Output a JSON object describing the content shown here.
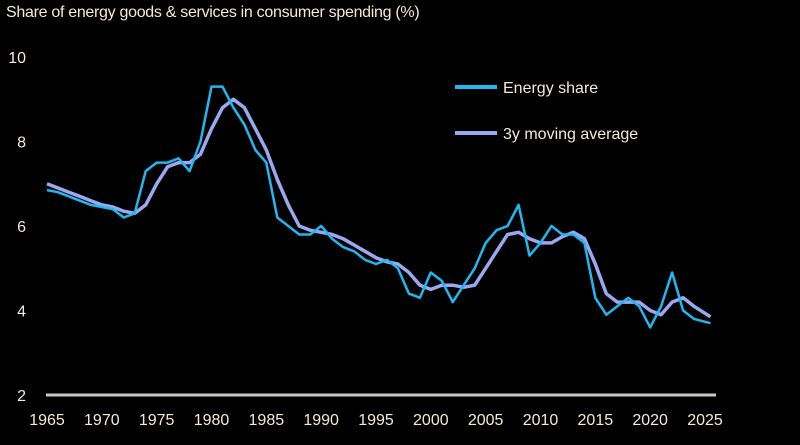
{
  "chart_data": {
    "type": "line",
    "title": "Share of energy goods & services in consumer spending (%)",
    "xlabel": "",
    "ylabel": "",
    "xlim": [
      1965,
      2026
    ],
    "ylim": [
      2,
      10
    ],
    "xticks": [
      "1965",
      "1970",
      "1975",
      "1980",
      "1985",
      "1990",
      "1995",
      "2000",
      "2005",
      "2010",
      "2015",
      "2020",
      "2025"
    ],
    "yticks": [
      "2",
      "4",
      "6",
      "8",
      "10"
    ],
    "grid": false,
    "legend": "top-right",
    "x": [
      1965,
      1966,
      1967,
      1968,
      1969,
      1970,
      1971,
      1972,
      1973,
      1974,
      1975,
      1976,
      1977,
      1978,
      1979,
      1980,
      1981,
      1982,
      1983,
      1984,
      1985,
      1986,
      1987,
      1988,
      1989,
      1990,
      1991,
      1992,
      1993,
      1994,
      1995,
      1996,
      1997,
      1998,
      1999,
      2000,
      2001,
      2002,
      2003,
      2004,
      2005,
      2006,
      2007,
      2008,
      2009,
      2010,
      2011,
      2012,
      2013,
      2014,
      2015,
      2016,
      2017,
      2018,
      2019,
      2020,
      2021,
      2022,
      2023,
      2024,
      2025.5
    ],
    "series": [
      {
        "name": "Energy share",
        "color": "#1fb8f0",
        "values": [
          6.85,
          6.8,
          6.7,
          6.6,
          6.5,
          6.45,
          6.4,
          6.2,
          6.3,
          7.3,
          7.5,
          7.5,
          7.6,
          7.3,
          8.0,
          9.3,
          9.3,
          8.8,
          8.4,
          7.8,
          7.5,
          6.2,
          6.0,
          5.8,
          5.8,
          6.0,
          5.7,
          5.5,
          5.4,
          5.2,
          5.1,
          5.2,
          5.0,
          4.4,
          4.3,
          4.9,
          4.7,
          4.2,
          4.6,
          5.0,
          5.6,
          5.9,
          6.0,
          6.5,
          5.3,
          5.6,
          6.0,
          5.8,
          5.8,
          5.6,
          4.3,
          3.9,
          4.1,
          4.3,
          4.1,
          3.6,
          4.1,
          4.9,
          4.0,
          3.8,
          3.7
        ]
      },
      {
        "name": "3y moving average",
        "color": "#9aa8ef",
        "values": [
          7.0,
          6.9,
          6.8,
          6.7,
          6.6,
          6.5,
          6.45,
          6.35,
          6.3,
          6.5,
          7.0,
          7.4,
          7.5,
          7.5,
          7.7,
          8.3,
          8.8,
          9.0,
          8.8,
          8.3,
          7.8,
          7.1,
          6.5,
          6.0,
          5.9,
          5.85,
          5.8,
          5.7,
          5.55,
          5.4,
          5.25,
          5.15,
          5.1,
          4.9,
          4.6,
          4.5,
          4.6,
          4.6,
          4.55,
          4.6,
          5.0,
          5.4,
          5.8,
          5.85,
          5.7,
          5.6,
          5.6,
          5.75,
          5.85,
          5.7,
          5.1,
          4.4,
          4.2,
          4.2,
          4.2,
          4.0,
          3.9,
          4.2,
          4.3,
          4.1,
          3.85
        ]
      }
    ]
  }
}
